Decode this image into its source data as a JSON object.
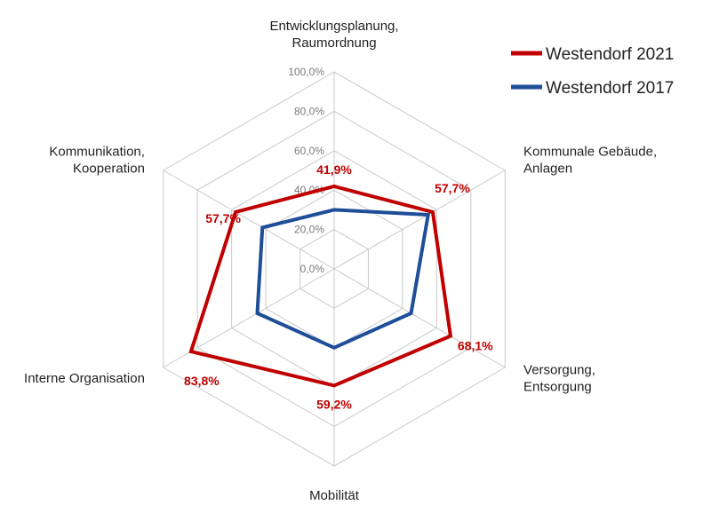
{
  "chart_data": {
    "type": "radar",
    "categories": [
      [
        "Entwicklungsplanung,",
        "Raumordnung"
      ],
      [
        "Kommunale Gebäude,",
        "Anlagen"
      ],
      [
        "Versorgung,",
        "Entsorgung"
      ],
      [
        "Mobilität"
      ],
      [
        "Interne Organisation"
      ],
      [
        "Kommunikation,",
        "Kooperation"
      ]
    ],
    "series": [
      {
        "name": "Westendorf 2021",
        "color": "#c00000",
        "values": [
          41.9,
          57.7,
          68.1,
          59.2,
          83.8,
          57.7
        ],
        "data_labels": [
          "41,9%",
          "57,7%",
          "68,1%",
          "59,2%",
          "83,8%",
          "57,7%"
        ]
      },
      {
        "name": "Westendorf 2017",
        "color": "#1f4e99",
        "values": [
          30.0,
          55.0,
          45.0,
          40.0,
          45.0,
          42.0
        ],
        "data_labels": []
      }
    ],
    "r_ticks": [
      "0,0%",
      "20,0%",
      "40,0%",
      "60,0%",
      "80,0%",
      "100,0%"
    ],
    "r_range": [
      0,
      100
    ],
    "grid": true,
    "legend_position": "top-right"
  }
}
